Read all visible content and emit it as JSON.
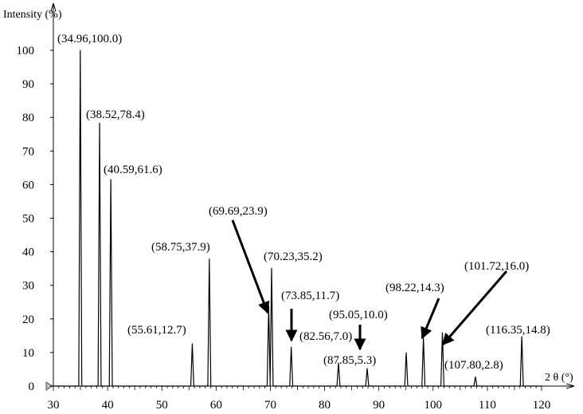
{
  "chart_data": {
    "type": "line",
    "title": "",
    "xlabel": "2 θ (°)",
    "ylabel": "Intensity (%)",
    "xlim": [
      30,
      120
    ],
    "ylim": [
      0,
      100
    ],
    "x_ticks": [
      30,
      40,
      50,
      60,
      70,
      80,
      90,
      100,
      110,
      120
    ],
    "y_ticks": [
      0,
      10,
      20,
      30,
      40,
      50,
      60,
      70,
      80,
      90,
      100
    ],
    "grid": false,
    "legend": "none",
    "line_color": "#000000",
    "peaks": [
      {
        "x": 34.96,
        "y": 100.0,
        "label": "(34.96,100.0)"
      },
      {
        "x": 38.52,
        "y": 78.4,
        "label": "(38.52,78.4)"
      },
      {
        "x": 40.59,
        "y": 61.6,
        "label": "(40.59,61.6)"
      },
      {
        "x": 55.61,
        "y": 12.7,
        "label": "(55.61,12.7)"
      },
      {
        "x": 58.75,
        "y": 37.9,
        "label": "(58.75,37.9)"
      },
      {
        "x": 69.69,
        "y": 23.9,
        "label": "(69.69,23.9)",
        "arrow": true
      },
      {
        "x": 70.23,
        "y": 35.2,
        "label": "(70.23,35.2)"
      },
      {
        "x": 73.85,
        "y": 11.7,
        "label": "(73.85,11.7)",
        "arrow": true
      },
      {
        "x": 82.56,
        "y": 7.0,
        "label": "(82.56,7.0)"
      },
      {
        "x": 87.85,
        "y": 5.3,
        "label": "(87.85,5.3)"
      },
      {
        "x": 95.05,
        "y": 10.0,
        "label": "(95.05,10.0)",
        "arrow": true
      },
      {
        "x": 98.22,
        "y": 14.3,
        "label": "(98.22,14.3)",
        "arrow": true
      },
      {
        "x": 101.72,
        "y": 16.0,
        "label": "(101.72,16.0)",
        "arrow": true
      },
      {
        "x": 107.8,
        "y": 2.8,
        "label": "(107.80,2.8)"
      },
      {
        "x": 116.35,
        "y": 14.8,
        "label": "(116.35,14.8)"
      }
    ]
  }
}
